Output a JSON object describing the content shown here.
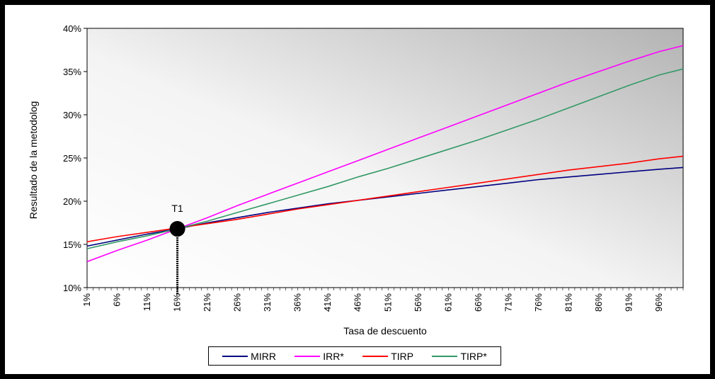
{
  "chart_data": {
    "type": "line",
    "xlabel": "Tasa de descuento",
    "ylabel": "Resultado de la metodolog",
    "x_range": [
      1,
      100
    ],
    "x_ticks": [
      "1%",
      "6%",
      "11%",
      "16%",
      "21%",
      "26%",
      "31%",
      "36%",
      "41%",
      "46%",
      "51%",
      "56%",
      "61%",
      "66%",
      "71%",
      "76%",
      "81%",
      "86%",
      "91%",
      "96%"
    ],
    "ylim": [
      10,
      40
    ],
    "y_ticks": [
      "10%",
      "15%",
      "20%",
      "25%",
      "30%",
      "35%",
      "40%"
    ],
    "y_tick_values": [
      10,
      15,
      20,
      25,
      30,
      35,
      40
    ],
    "grid": false,
    "legend_position": "bottom",
    "series": [
      {
        "name": "MIRR",
        "color": "#000080",
        "x": [
          1,
          6,
          11,
          16,
          21,
          26,
          31,
          36,
          41,
          46,
          51,
          56,
          61,
          66,
          71,
          76,
          81,
          86,
          91,
          96,
          100
        ],
        "values": [
          14.8,
          15.5,
          16.2,
          16.8,
          17.5,
          18.1,
          18.7,
          19.2,
          19.7,
          20.1,
          20.5,
          20.9,
          21.3,
          21.7,
          22.1,
          22.5,
          22.8,
          23.1,
          23.4,
          23.7,
          23.9
        ]
      },
      {
        "name": "IRR*",
        "color": "#ff00ff",
        "x": [
          1,
          6,
          11,
          16,
          21,
          26,
          31,
          36,
          41,
          46,
          51,
          56,
          61,
          66,
          71,
          76,
          81,
          86,
          91,
          96,
          100
        ],
        "values": [
          13.0,
          14.3,
          15.5,
          16.8,
          18.1,
          19.5,
          20.8,
          22.1,
          23.4,
          24.7,
          26.0,
          27.3,
          28.6,
          29.9,
          31.2,
          32.5,
          33.8,
          35.0,
          36.2,
          37.3,
          38.0
        ]
      },
      {
        "name": "TIRP",
        "color": "#ff0000",
        "x": [
          1,
          6,
          11,
          16,
          21,
          26,
          31,
          36,
          41,
          46,
          51,
          56,
          61,
          66,
          71,
          76,
          81,
          86,
          91,
          96,
          100
        ],
        "values": [
          15.3,
          15.9,
          16.4,
          16.9,
          17.4,
          17.9,
          18.5,
          19.1,
          19.6,
          20.1,
          20.6,
          21.1,
          21.6,
          22.1,
          22.6,
          23.1,
          23.6,
          24.0,
          24.4,
          24.9,
          25.2
        ]
      },
      {
        "name": "TIRP*",
        "color": "#339966",
        "x": [
          1,
          6,
          11,
          16,
          21,
          26,
          31,
          36,
          41,
          46,
          51,
          56,
          61,
          66,
          71,
          76,
          81,
          86,
          91,
          96,
          100
        ],
        "values": [
          14.5,
          15.3,
          16.0,
          16.8,
          17.7,
          18.7,
          19.7,
          20.7,
          21.7,
          22.8,
          23.8,
          24.9,
          26.0,
          27.1,
          28.3,
          29.5,
          30.8,
          32.1,
          33.4,
          34.6,
          35.3
        ]
      }
    ],
    "annotations": [
      {
        "label": "T1",
        "x": 16,
        "y": 16.8
      }
    ]
  }
}
